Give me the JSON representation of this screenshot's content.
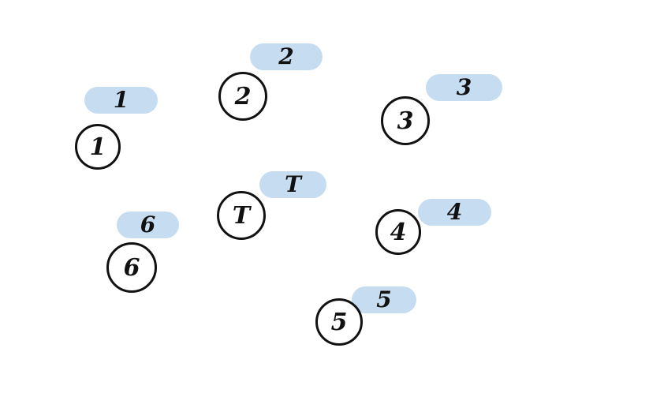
{
  "nodes": [
    {
      "id": "1",
      "label": "1",
      "tag": "1"
    },
    {
      "id": "2",
      "label": "2",
      "tag": "2"
    },
    {
      "id": "3",
      "label": "3",
      "tag": "3"
    },
    {
      "id": "T",
      "label": "T",
      "tag": "T"
    },
    {
      "id": "4",
      "label": "4",
      "tag": "4"
    },
    {
      "id": "5",
      "label": "5",
      "tag": "5"
    },
    {
      "id": "6",
      "label": "6",
      "tag": "6"
    }
  ],
  "colors": {
    "tag_fill": "#c6ddf1",
    "ink": "#111111",
    "background": "#ffffff"
  }
}
